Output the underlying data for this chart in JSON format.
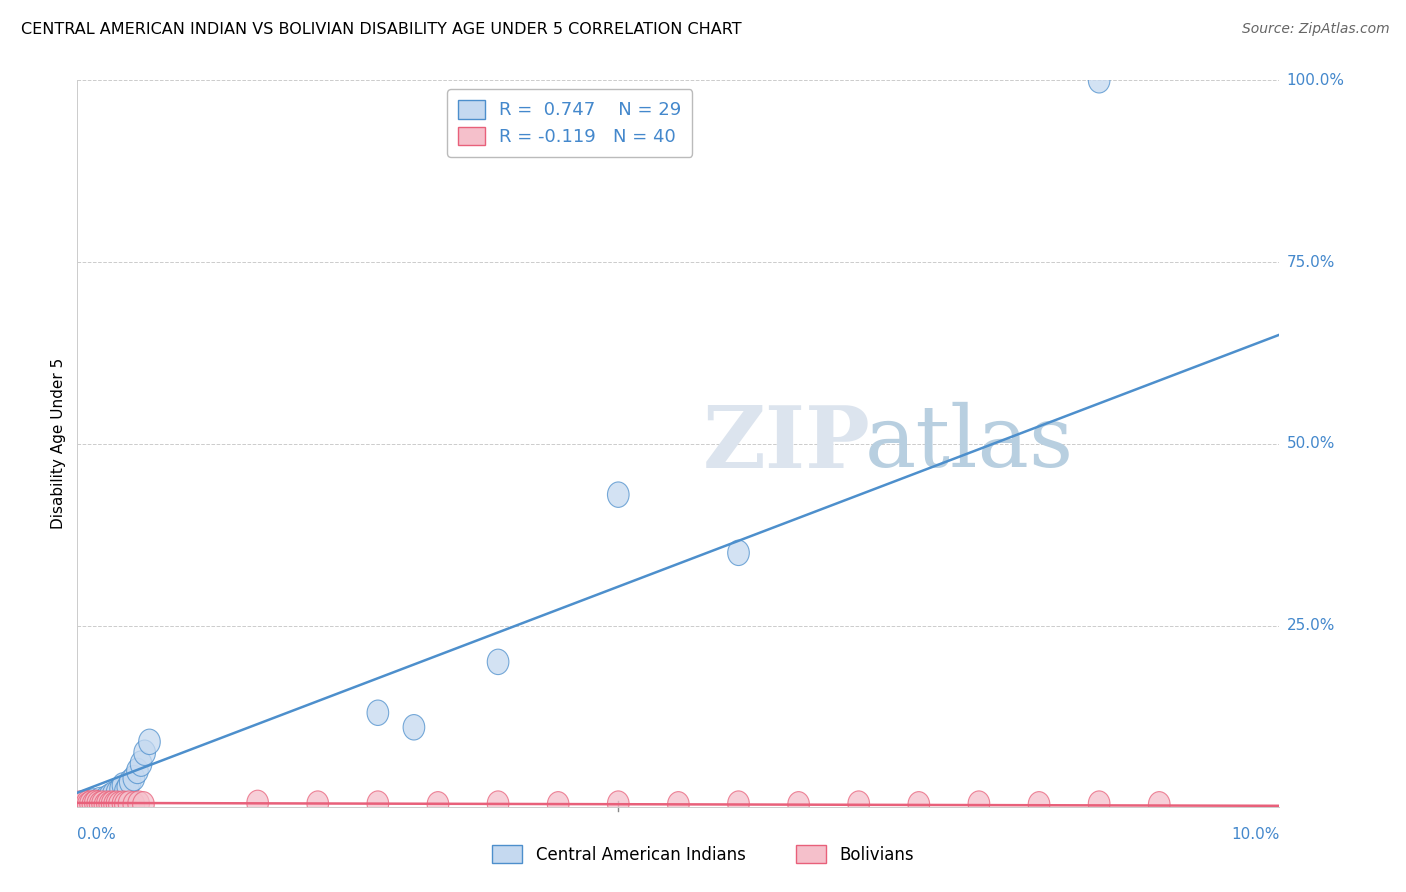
{
  "title": "CENTRAL AMERICAN INDIAN VS BOLIVIAN DISABILITY AGE UNDER 5 CORRELATION CHART",
  "source": "Source: ZipAtlas.com",
  "ylabel": "Disability Age Under 5",
  "xlim": [
    0.0,
    10.0
  ],
  "ylim": [
    0.0,
    100.0
  ],
  "yticks": [
    0,
    25,
    50,
    75,
    100
  ],
  "ytick_labels": [
    "",
    "25.0%",
    "50.0%",
    "75.0%",
    "100.0%"
  ],
  "background_color": "#ffffff",
  "grid_color": "#cccccc",
  "blue_color": "#4d8fcc",
  "blue_fill": "#c5d9f0",
  "pink_color": "#e8607a",
  "pink_fill": "#f5c0cb",
  "blue_R": 0.747,
  "blue_N": 29,
  "pink_R": -0.119,
  "pink_N": 40,
  "legend_label_blue": "Central American Indians",
  "legend_label_pink": "Bolivians",
  "blue_x": [
    0.05,
    0.07,
    0.09,
    0.11,
    0.13,
    0.15,
    0.17,
    0.19,
    0.22,
    0.24,
    0.27,
    0.3,
    0.33,
    0.36,
    0.38,
    0.4,
    0.42,
    0.44,
    0.47,
    0.5,
    0.53,
    0.56,
    0.6,
    2.5,
    2.8,
    3.5,
    4.5,
    5.5,
    8.5
  ],
  "blue_y": [
    0.5,
    0.3,
    0.7,
    0.4,
    0.8,
    0.5,
    0.6,
    1.0,
    0.8,
    1.2,
    1.5,
    1.8,
    2.0,
    2.5,
    3.0,
    2.2,
    2.8,
    3.5,
    4.0,
    5.0,
    6.0,
    7.5,
    9.0,
    13.0,
    11.0,
    20.0,
    43.0,
    35.0,
    100.0
  ],
  "pink_x": [
    0.02,
    0.04,
    0.06,
    0.08,
    0.09,
    0.11,
    0.13,
    0.15,
    0.17,
    0.19,
    0.21,
    0.23,
    0.25,
    0.27,
    0.29,
    0.31,
    0.33,
    0.35,
    0.38,
    0.4,
    0.43,
    0.47,
    0.51,
    0.55,
    1.5,
    2.0,
    2.5,
    3.0,
    3.5,
    4.0,
    4.5,
    5.0,
    5.5,
    6.0,
    6.5,
    7.0,
    7.5,
    8.0,
    8.5,
    9.0
  ],
  "pink_y": [
    0.5,
    0.4,
    0.6,
    0.5,
    0.3,
    0.5,
    0.4,
    0.6,
    0.5,
    0.4,
    0.5,
    0.3,
    0.5,
    0.4,
    0.5,
    0.4,
    0.5,
    0.4,
    0.5,
    0.4,
    0.5,
    0.4,
    0.5,
    0.4,
    0.6,
    0.5,
    0.5,
    0.4,
    0.5,
    0.4,
    0.5,
    0.4,
    0.5,
    0.4,
    0.5,
    0.4,
    0.5,
    0.4,
    0.5,
    0.4
  ],
  "blue_trend_x0": 0.0,
  "blue_trend_y0": 2.0,
  "blue_trend_x1": 10.0,
  "blue_trend_y1": 65.0,
  "pink_trend_x0": 0.0,
  "pink_trend_y0": 0.6,
  "pink_trend_x1": 10.0,
  "pink_trend_y1": 0.2
}
